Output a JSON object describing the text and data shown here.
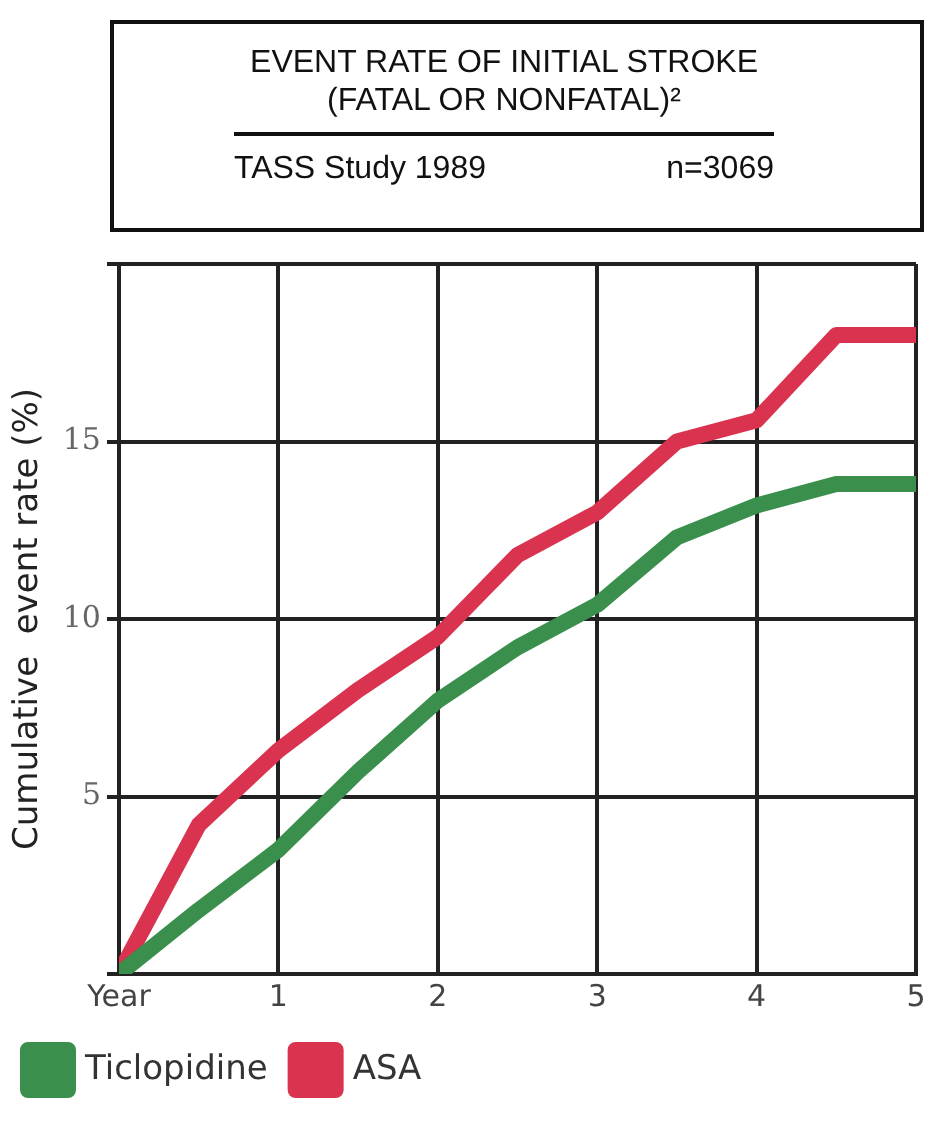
{
  "chart_data": {
    "type": "line",
    "title": "EVENT RATE OF INITIAL STROKE (FATAL OR NONFATAL)²",
    "subtitle": "TASS Study 1989",
    "annotations": [
      "n=3069"
    ],
    "ylabel": "Cumulative  event rate (%)",
    "x": [
      0,
      0.5,
      1,
      1.5,
      2,
      2.5,
      3,
      3.5,
      4,
      4.5,
      5
    ],
    "series": [
      {
        "name": "Ticlopidine",
        "color": "#3a8f4c",
        "values": [
          0,
          1.8,
          3.5,
          5.7,
          7.7,
          9.2,
          10.4,
          12.3,
          13.2,
          13.8,
          13.8
        ]
      },
      {
        "name": "ASA",
        "color": "#d9334f",
        "values": [
          0,
          4.2,
          6.3,
          8.0,
          9.5,
          11.8,
          13.0,
          15.0,
          15.6,
          18.0,
          18.0
        ]
      }
    ],
    "xlim": [
      0,
      5
    ],
    "xticks": [
      {
        "value": 0,
        "label": "Year"
      },
      1,
      2,
      3,
      4,
      5
    ],
    "ylim": [
      0,
      20
    ],
    "yticks": [
      {
        "value": 0,
        "label": null
      },
      5,
      10,
      15,
      {
        "value": 20,
        "label": null
      }
    ],
    "grid": true,
    "legend": "bottom left",
    "marker": "none",
    "line_style": "solid"
  }
}
